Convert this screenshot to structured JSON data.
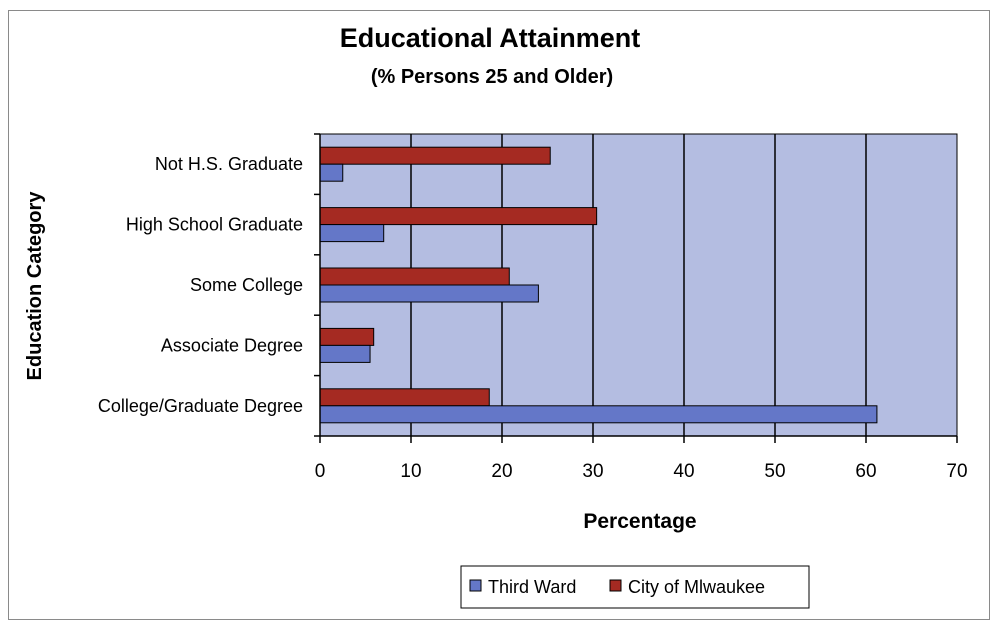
{
  "chart_data": {
    "type": "bar",
    "orientation": "horizontal",
    "title": "Educational Attainment",
    "subtitle": "(% Persons 25 and Older)",
    "xlabel": "Percentage",
    "ylabel": "Education Category",
    "categories": [
      "Not H.S. Graduate",
      "High School Graduate",
      "Some College",
      "Associate Degree",
      "College/Graduate Degree"
    ],
    "xlim": [
      0,
      70
    ],
    "x_ticks": [
      "0",
      "10",
      "20",
      "30",
      "40",
      "50",
      "60",
      "70"
    ],
    "grid": "vertical",
    "legend_position": "bottom",
    "plot_background": "#b4bde1",
    "series": [
      {
        "name": "Third Ward",
        "color": "#6477c8",
        "values": [
          2.5,
          7,
          24,
          5.5,
          61.2
        ]
      },
      {
        "name": "City of Mlwaukee",
        "color": "#a52a22",
        "values": [
          25.3,
          30.4,
          20.8,
          5.9,
          18.6
        ]
      }
    ]
  }
}
